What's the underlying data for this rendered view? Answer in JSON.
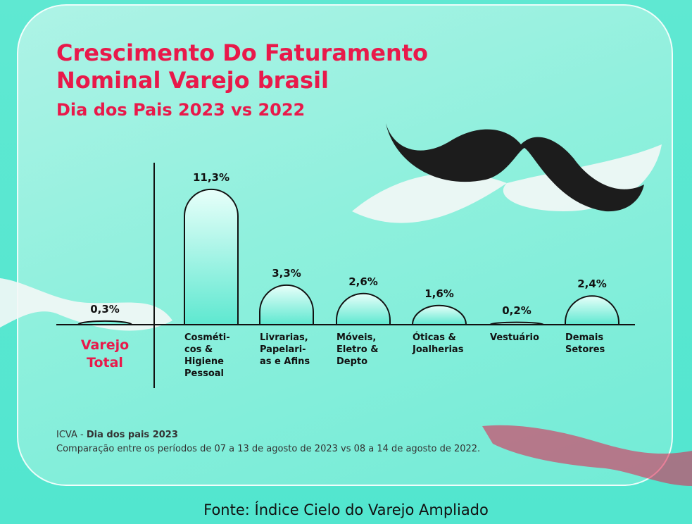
{
  "chart_data": {
    "type": "bar",
    "title_line1": "Crescimento Do Faturamento",
    "title_line2": "Nominal Varejo brasil",
    "subtitle": "Dia dos Pais 2023 vs 2022",
    "categories": [
      "Varejo\nTotal",
      "Cosméti-\ncos &\nHigiene\nPessoal",
      "Livrarias,\nPapelari-\nas e Afins",
      "Móveis,\nEletro &\nDepto",
      "Óticas &\nJoalherias",
      "Vestuário",
      "Demais\nSetores"
    ],
    "values": [
      0.3,
      11.3,
      3.3,
      2.6,
      1.6,
      0.2,
      2.4
    ],
    "value_labels": [
      "0,3%",
      "11,3%",
      "3,3%",
      "2,6%",
      "1,6%",
      "0,2%",
      "2,4%"
    ],
    "color": "#7ff0dc",
    "highlight_color": "#e8194a",
    "note_prefix": "ICVA -",
    "note_bold": "Dia dos pais 2023",
    "note_comparison": "Comparação entre os períodos de 07 a 13 de agosto de 2023 vs 08 a 14 de agosto de 2022.",
    "source": "Fonte: Índice Cielo do Varejo Ampliado"
  }
}
